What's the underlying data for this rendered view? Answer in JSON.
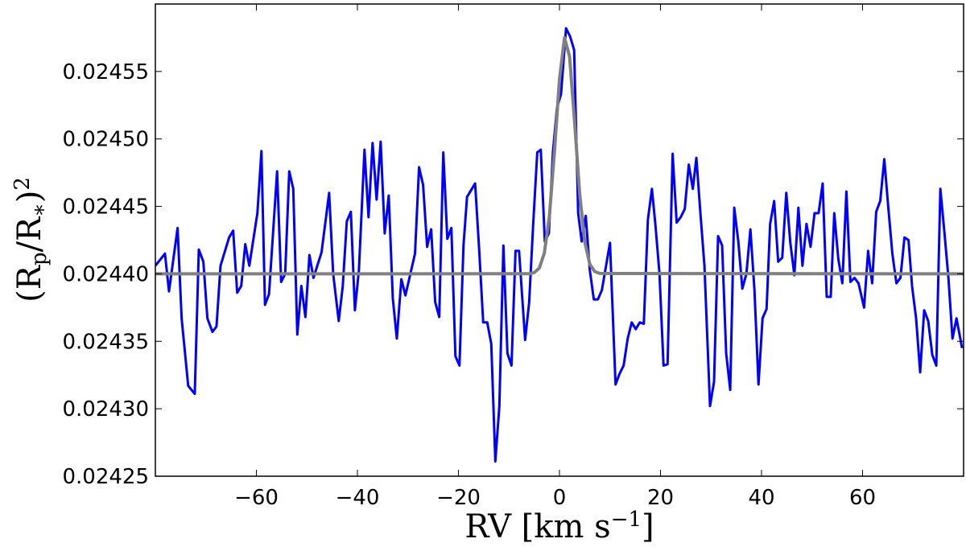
{
  "chart_data": {
    "type": "line",
    "xlabel": [
      "RV [km s",
      "−1",
      "]"
    ],
    "ylabel": [
      "(R",
      "p",
      "/R",
      "∗",
      ")",
      "2"
    ],
    "xlim": [
      -80,
      80
    ],
    "ylim": [
      0.02425,
      0.0246
    ],
    "xticks": [
      {
        "value": -60,
        "label": "−60"
      },
      {
        "value": -40,
        "label": "−40"
      },
      {
        "value": -20,
        "label": "−20"
      },
      0,
      20,
      40,
      60
    ],
    "yticks": [
      0.02425,
      {
        "value": 0.0243,
        "label": "0.02430"
      },
      0.02435,
      {
        "value": 0.0244,
        "label": "0.02440"
      },
      0.02445,
      {
        "value": 0.0245,
        "label": "0.02450"
      },
      0.02455
    ],
    "series": [
      {
        "color": "#0000ff",
        "x": [
          -80,
          -78.1,
          -77.3,
          -75.6,
          -74.8,
          -73.5,
          -72.2,
          -71.4,
          -70.5,
          -69.7,
          -68.7,
          -67.9,
          -67.1,
          -65.4,
          -64.6,
          -63.8,
          -63,
          -62.2,
          -61.4,
          -59.8,
          -59,
          -58.3,
          -57.5,
          -55.9,
          -55.1,
          -54.3,
          -53.5,
          -52.7,
          -51.9,
          -51.1,
          -50.3,
          -49.5,
          -48.7,
          -47.1,
          -45.6,
          -44.8,
          -43.7,
          -42.9,
          -42.1,
          -41.3,
          -40.5,
          -39.7,
          -38.6,
          -37.8,
          -37,
          -36.2,
          -35.4,
          -34.6,
          -33.8,
          -33,
          -32.2,
          -31.3,
          -30.5,
          -29.7,
          -28.6,
          -27.8,
          -27,
          -26.2,
          -25.4,
          -24.6,
          -23.8,
          -23,
          -22.2,
          -21.4,
          -20.6,
          -19.8,
          -19,
          -18.3,
          -16.7,
          -15.9,
          -15.1,
          -14.3,
          -13.5,
          -12.7,
          -11.9,
          -11.1,
          -10.3,
          -9.5,
          -8.7,
          -8,
          -6.8,
          -6,
          -5.2,
          -4.4,
          -3.7,
          -2.9,
          -2.1,
          -1.3,
          -0.5,
          0.3,
          1.3,
          2.1,
          2.9,
          3.7,
          4.4,
          5.2,
          6,
          6.8,
          7.6,
          8.4,
          10,
          11.1,
          11.9,
          12.7,
          13.5,
          14.3,
          15.1,
          15.9,
          16.7,
          17.5,
          18.3,
          19,
          19.8,
          20.6,
          21.4,
          22.4,
          23.2,
          24,
          24.8,
          25.6,
          26.4,
          27.1,
          27.9,
          28.7,
          29.8,
          30.6,
          31.4,
          32.2,
          33,
          33.8,
          34.6,
          35.4,
          36.2,
          37,
          37.8,
          38.6,
          39.4,
          40.2,
          41,
          41.7,
          42.5,
          43.3,
          44.1,
          44.9,
          45.7,
          46.5,
          47.3,
          48.1,
          48.9,
          49.7,
          50.5,
          51.3,
          52.1,
          52.9,
          53.7,
          54.4,
          55.2,
          56,
          56.8,
          57.6,
          58.4,
          59.2,
          60.3,
          61.1,
          61.9,
          62.7,
          63.5,
          64.3,
          65.1,
          65.9,
          66.7,
          67.5,
          68.3,
          69.1,
          69.8,
          70.6,
          71.4,
          72.2,
          73,
          73.8,
          74.6,
          75.4,
          76.2,
          77,
          77.8,
          78.6,
          79.7
        ],
        "values": [
          0.024406,
          0.024415,
          0.024387,
          0.024434,
          0.024367,
          0.024317,
          0.024311,
          0.024418,
          0.024409,
          0.024367,
          0.024357,
          0.024361,
          0.024406,
          0.024427,
          0.024432,
          0.024386,
          0.024391,
          0.024422,
          0.024406,
          0.024445,
          0.024491,
          0.024377,
          0.024385,
          0.024476,
          0.024394,
          0.0244,
          0.024476,
          0.024463,
          0.024355,
          0.024391,
          0.024368,
          0.024414,
          0.024397,
          0.024416,
          0.02446,
          0.0244,
          0.024365,
          0.024391,
          0.024439,
          0.024446,
          0.024373,
          0.024403,
          0.024492,
          0.024442,
          0.024497,
          0.024455,
          0.024498,
          0.02443,
          0.024458,
          0.024382,
          0.024352,
          0.024396,
          0.024384,
          0.024397,
          0.024415,
          0.024479,
          0.024466,
          0.02442,
          0.024433,
          0.024379,
          0.024368,
          0.02449,
          0.024426,
          0.024434,
          0.024339,
          0.024332,
          0.024421,
          0.024457,
          0.024467,
          0.024418,
          0.024364,
          0.024364,
          0.024348,
          0.024261,
          0.024302,
          0.024421,
          0.024341,
          0.024332,
          0.024417,
          0.024417,
          0.024351,
          0.024379,
          0.024437,
          0.02449,
          0.024492,
          0.024424,
          0.02443,
          0.02449,
          0.024523,
          0.024533,
          0.024582,
          0.024576,
          0.024566,
          0.024445,
          0.024424,
          0.024443,
          0.024403,
          0.024381,
          0.024381,
          0.024388,
          0.024423,
          0.024318,
          0.024326,
          0.024332,
          0.024352,
          0.024364,
          0.024359,
          0.024364,
          0.024363,
          0.02444,
          0.024463,
          0.024436,
          0.0244,
          0.024332,
          0.024333,
          0.024489,
          0.024438,
          0.024442,
          0.024448,
          0.024481,
          0.024463,
          0.024486,
          0.024445,
          0.024406,
          0.024302,
          0.02432,
          0.024428,
          0.024421,
          0.024341,
          0.024314,
          0.024449,
          0.024424,
          0.024389,
          0.0244,
          0.024433,
          0.024388,
          0.024318,
          0.024367,
          0.024374,
          0.024437,
          0.024454,
          0.024409,
          0.024412,
          0.02446,
          0.024423,
          0.024399,
          0.024449,
          0.024406,
          0.024437,
          0.02442,
          0.024445,
          0.024445,
          0.024467,
          0.024383,
          0.024383,
          0.024445,
          0.024411,
          0.024393,
          0.024461,
          0.024394,
          0.024397,
          0.024393,
          0.024375,
          0.024417,
          0.024393,
          0.024446,
          0.024454,
          0.024485,
          0.024449,
          0.024415,
          0.024393,
          0.024397,
          0.024427,
          0.024425,
          0.024391,
          0.024367,
          0.024327,
          0.024373,
          0.024365,
          0.02434,
          0.024332,
          0.024463,
          0.024431,
          0.024397,
          0.024352,
          0.024367,
          0.024345
        ]
      },
      {
        "color": "#808080",
        "x": [
          -80,
          -6,
          -5,
          -4,
          -3,
          -2,
          -1,
          0,
          1,
          2,
          3,
          4,
          5,
          6,
          7,
          8,
          80
        ],
        "values": [
          0.0244,
          0.0244001,
          0.0244009,
          0.0244042,
          0.0244153,
          0.0244426,
          0.0244901,
          0.0245442,
          0.024575,
          0.0245611,
          0.0245123,
          0.0244594,
          0.0244238,
          0.0244072,
          0.0244017,
          0.0244003,
          0.0244
        ]
      }
    ]
  }
}
